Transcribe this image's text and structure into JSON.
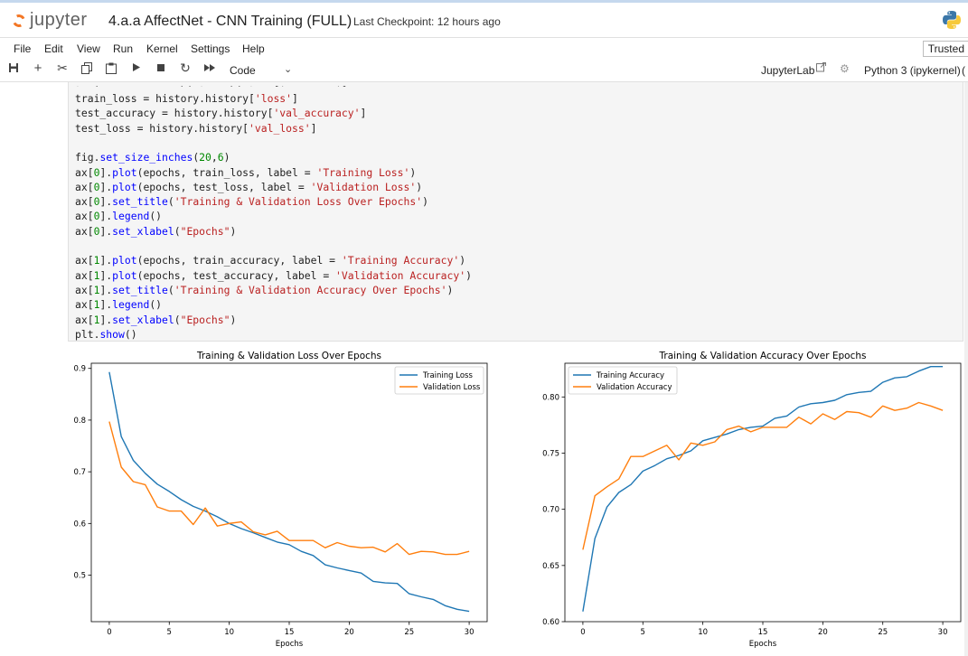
{
  "header": {
    "logo_text": "jupyter",
    "notebook_title": "4.a.a AffectNet - CNN Training (FULL)",
    "checkpoint": "Last Checkpoint: 12 hours ago"
  },
  "menu": {
    "items": [
      "File",
      "Edit",
      "View",
      "Run",
      "Kernel",
      "Settings",
      "Help"
    ],
    "trusted": "Trusted"
  },
  "toolbar": {
    "cell_type": "Code",
    "jupyterlab_link": "JupyterLab",
    "kernel_name": "Python 3 (ipykernel)",
    "kernel_next": "("
  },
  "code_cell": {
    "lines": [
      "train_loss = history.history['loss']",
      "test_accuracy = history.history['val_accuracy']",
      "test_loss = history.history['val_loss']",
      "",
      "fig.set_size_inches(20,6)",
      "ax[0].plot(epochs, train_loss, label = 'Training Loss')",
      "ax[0].plot(epochs, test_loss, label = 'Validation Loss')",
      "ax[0].set_title('Training & Validation Loss Over Epochs')",
      "ax[0].legend()",
      "ax[0].set_xlabel(\"Epochs\")",
      "",
      "ax[1].plot(epochs, train_accuracy, label = 'Training Accuracy')",
      "ax[1].plot(epochs, test_accuracy, label = 'Validation Accuracy')",
      "ax[1].set_title('Training & Validation Accuracy Over Epochs')",
      "ax[1].legend()",
      "ax[1].set_xlabel(\"Epochs\")",
      "plt.show()"
    ]
  },
  "chart_data": [
    {
      "type": "line",
      "title": "Training & Validation Loss Over Epochs",
      "xlabel": "Epochs",
      "ylabel": "",
      "xlim": [
        -1.5,
        31.5
      ],
      "ylim": [
        0.41,
        0.91
      ],
      "xticks": [
        0,
        5,
        10,
        15,
        20,
        25,
        30
      ],
      "yticks": [
        0.5,
        0.6,
        0.7,
        0.8,
        0.9
      ],
      "legend": "top-right",
      "x": [
        0,
        1,
        2,
        3,
        4,
        5,
        6,
        7,
        8,
        9,
        10,
        11,
        12,
        13,
        14,
        15,
        16,
        17,
        18,
        19,
        20,
        21,
        22,
        23,
        24,
        25,
        26,
        27,
        28,
        29,
        30
      ],
      "series": [
        {
          "name": "Training Loss",
          "color": "#1f77b4",
          "values": [
            0.893,
            0.768,
            0.722,
            0.697,
            0.676,
            0.662,
            0.646,
            0.633,
            0.624,
            0.613,
            0.6,
            0.59,
            0.582,
            0.573,
            0.564,
            0.559,
            0.546,
            0.538,
            0.52,
            0.514,
            0.509,
            0.504,
            0.488,
            0.485,
            0.484,
            0.464,
            0.458,
            0.453,
            0.441,
            0.434,
            0.43
          ]
        },
        {
          "name": "Validation Loss",
          "color": "#ff7f0e",
          "values": [
            0.797,
            0.709,
            0.681,
            0.675,
            0.632,
            0.624,
            0.624,
            0.598,
            0.63,
            0.595,
            0.6,
            0.603,
            0.584,
            0.578,
            0.585,
            0.567,
            0.567,
            0.567,
            0.553,
            0.563,
            0.556,
            0.553,
            0.554,
            0.545,
            0.561,
            0.54,
            0.546,
            0.545,
            0.54,
            0.54,
            0.546
          ]
        }
      ]
    },
    {
      "type": "line",
      "title": "Training & Validation Accuracy Over Epochs",
      "xlabel": "Epochs",
      "ylabel": "",
      "xlim": [
        -1.5,
        31.5
      ],
      "ylim": [
        0.6,
        0.83
      ],
      "xticks": [
        0,
        5,
        10,
        15,
        20,
        25,
        30
      ],
      "yticks": [
        0.6,
        0.65,
        0.7,
        0.75,
        0.8
      ],
      "legend": "top-left",
      "x": [
        0,
        1,
        2,
        3,
        4,
        5,
        6,
        7,
        8,
        9,
        10,
        11,
        12,
        13,
        14,
        15,
        16,
        17,
        18,
        19,
        20,
        21,
        22,
        23,
        24,
        25,
        26,
        27,
        28,
        29,
        30
      ],
      "series": [
        {
          "name": "Training Accuracy",
          "color": "#1f77b4",
          "values": [
            0.609,
            0.674,
            0.702,
            0.715,
            0.722,
            0.734,
            0.739,
            0.745,
            0.748,
            0.752,
            0.761,
            0.764,
            0.767,
            0.771,
            0.773,
            0.774,
            0.781,
            0.783,
            0.791,
            0.794,
            0.795,
            0.797,
            0.802,
            0.804,
            0.805,
            0.813,
            0.817,
            0.818,
            0.823,
            0.827,
            0.827
          ]
        },
        {
          "name": "Validation Accuracy",
          "color": "#ff7f0e",
          "values": [
            0.664,
            0.712,
            0.72,
            0.727,
            0.747,
            0.747,
            0.752,
            0.757,
            0.744,
            0.759,
            0.757,
            0.76,
            0.771,
            0.774,
            0.769,
            0.773,
            0.773,
            0.773,
            0.782,
            0.776,
            0.785,
            0.78,
            0.787,
            0.786,
            0.782,
            0.792,
            0.788,
            0.79,
            0.795,
            0.792,
            0.788
          ]
        }
      ]
    }
  ]
}
